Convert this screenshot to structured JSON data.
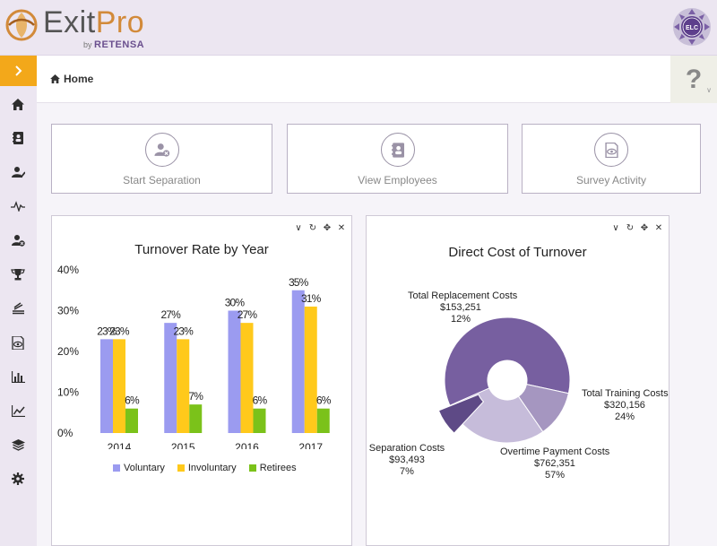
{
  "header": {
    "brand_word_1": "Exit",
    "brand_word_2": "Pro",
    "brand_by": "by",
    "brand_company": "RETENSA",
    "profile_badge_text": "ELC"
  },
  "sidebar": {
    "items": [
      {
        "icon": "home-icon"
      },
      {
        "icon": "address-book-icon"
      },
      {
        "icon": "user-check-icon"
      },
      {
        "icon": "pulse-icon"
      },
      {
        "icon": "user-remove-icon"
      },
      {
        "icon": "trophy-icon"
      },
      {
        "icon": "stack-icon"
      },
      {
        "icon": "eye-document-icon"
      },
      {
        "icon": "bar-chart-icon"
      },
      {
        "icon": "line-chart-icon"
      },
      {
        "icon": "layers-icon"
      },
      {
        "icon": "gear-icon"
      }
    ]
  },
  "breadcrumb": {
    "label": "Home"
  },
  "help": {
    "label": "?"
  },
  "actions": [
    {
      "label": "Start Separation",
      "icon": "user-remove-icon"
    },
    {
      "label": "View Employees",
      "icon": "address-book-icon"
    },
    {
      "label": "Survey Activity",
      "icon": "eye-document-icon"
    }
  ],
  "colors": {
    "accent": "#f3a81a",
    "voluntary": "#9b9bf0",
    "involuntary": "#ffc91b",
    "retirees": "#7bc21a",
    "pie_dark": "#775fa0",
    "pie_medium": "#a596c0",
    "pie_light": "#c6bcda",
    "pie_exploded": "#5e4a86"
  },
  "chart_data": [
    {
      "type": "bar",
      "title": "Turnover Rate by Year",
      "categories": [
        "2014",
        "2015",
        "2016",
        "2017"
      ],
      "series": [
        {
          "name": "Voluntary",
          "values": [
            23,
            27,
            30,
            35
          ],
          "labels": [
            "23%",
            "27%",
            "30%",
            "35%"
          ]
        },
        {
          "name": "Involuntary",
          "values": [
            23,
            23,
            27,
            31
          ],
          "labels": [
            "23%",
            "23%",
            "27%",
            "31%"
          ]
        },
        {
          "name": "Retirees",
          "values": [
            6,
            7,
            6,
            6
          ],
          "labels": [
            "6%",
            "7%",
            "6%",
            "6%"
          ]
        }
      ],
      "yticks": [
        "0%",
        "10%",
        "20%",
        "30%",
        "40%"
      ],
      "ylim": [
        0,
        40
      ],
      "legend": "bottom"
    },
    {
      "type": "pie",
      "title": "Direct Cost of Turnover",
      "donut": true,
      "slices": [
        {
          "name": "Total Replacement Costs",
          "amount": "$153,251",
          "percent": "12%",
          "value": 12
        },
        {
          "name": "Total Training Costs",
          "amount": "$320,156",
          "percent": "24%",
          "value": 24
        },
        {
          "name": "Overtime Payment Costs",
          "amount": "$762,351",
          "percent": "57%",
          "value": 57
        },
        {
          "name": "Separation Costs",
          "amount": "$93,493",
          "percent": "7%",
          "value": 7
        }
      ]
    }
  ]
}
